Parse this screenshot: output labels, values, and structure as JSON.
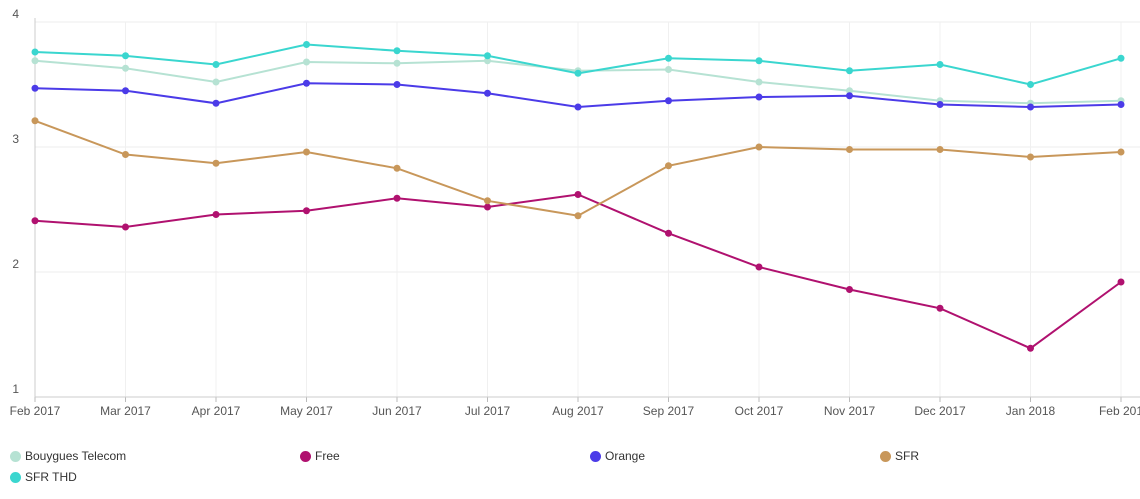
{
  "chart_data": {
    "type": "line",
    "title": "",
    "xlabel": "",
    "ylabel": "",
    "ylim": [
      1,
      4
    ],
    "yticks": [
      "1",
      "2",
      "3",
      "4"
    ],
    "grid": true,
    "legend_position": "bottom",
    "categories": [
      "Feb 2017",
      "Mar 2017",
      "Apr 2017",
      "May 2017",
      "Jun 2017",
      "Jul 2017",
      "Aug 2017",
      "Sep 2017",
      "Oct 2017",
      "Nov 2017",
      "Dec 2017",
      "Jan 2018",
      "Feb 201"
    ],
    "series": [
      {
        "name": "Bouygues Telecom",
        "color": "#b6e2d3",
        "values": [
          3.69,
          3.63,
          3.52,
          3.68,
          3.67,
          3.69,
          3.61,
          3.62,
          3.52,
          3.45,
          3.37,
          3.35,
          3.37
        ]
      },
      {
        "name": "Free",
        "color": "#b0116f",
        "values": [
          2.41,
          2.36,
          2.46,
          2.49,
          2.59,
          2.52,
          2.62,
          2.31,
          2.04,
          1.86,
          1.71,
          1.39,
          1.92
        ]
      },
      {
        "name": "Orange",
        "color": "#4b3be8",
        "values": [
          3.47,
          3.45,
          3.35,
          3.51,
          3.5,
          3.43,
          3.32,
          3.37,
          3.4,
          3.41,
          3.34,
          3.32,
          3.34
        ]
      },
      {
        "name": "SFR",
        "color": "#c8975a",
        "values": [
          3.21,
          2.94,
          2.87,
          2.96,
          2.83,
          2.57,
          2.45,
          2.85,
          3.0,
          2.98,
          2.98,
          2.92,
          2.96
        ]
      },
      {
        "name": "SFR THD",
        "color": "#3ad6cf",
        "values": [
          3.76,
          3.73,
          3.66,
          3.82,
          3.77,
          3.73,
          3.59,
          3.71,
          3.69,
          3.61,
          3.66,
          3.5,
          3.71
        ]
      }
    ]
  }
}
